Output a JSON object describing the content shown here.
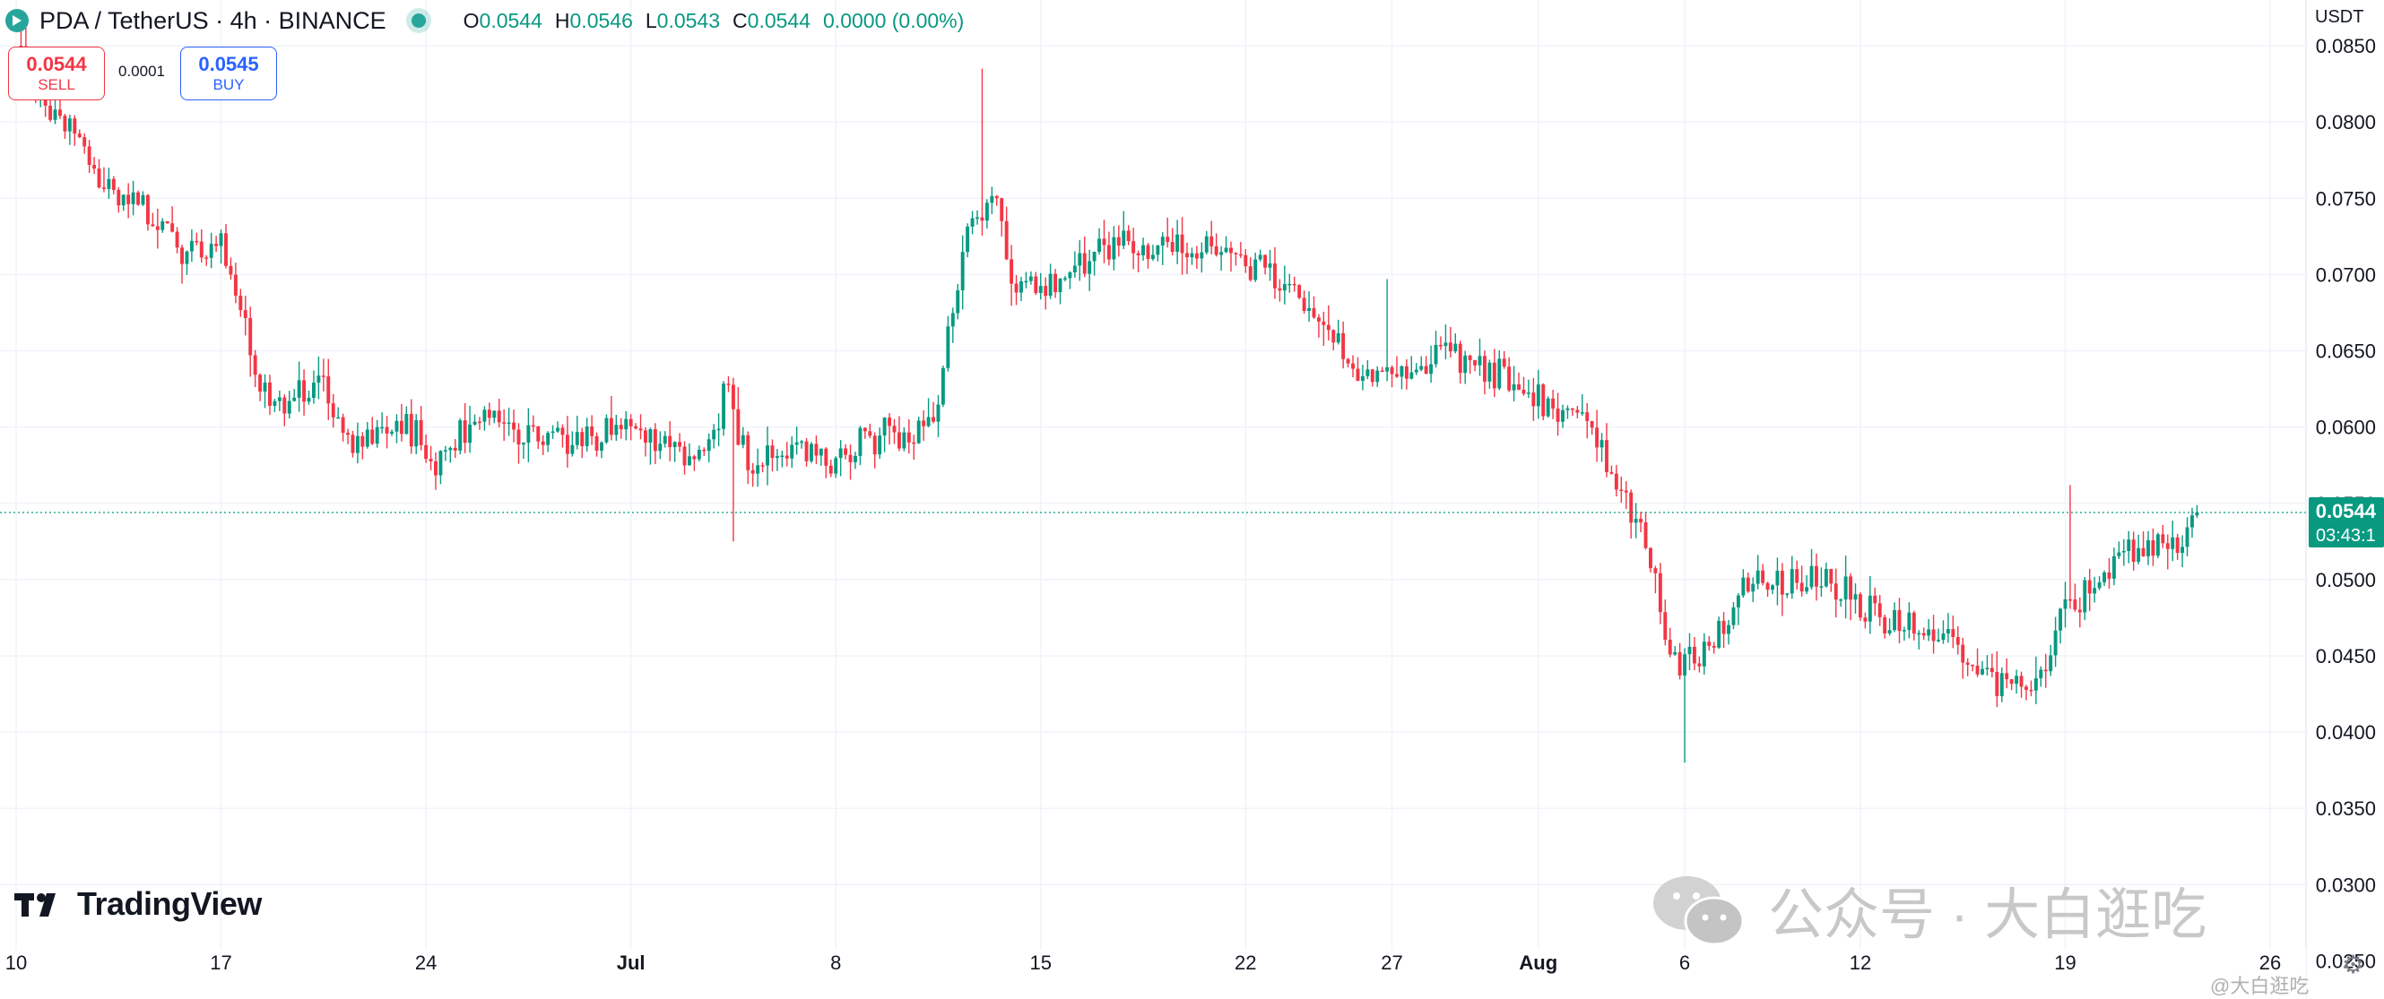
{
  "header": {
    "symbol": "PDA / TetherUS · 4h · BINANCE",
    "ohlc": [
      {
        "k": "O",
        "v": "0.0544"
      },
      {
        "k": "H",
        "v": "0.0546"
      },
      {
        "k": "L",
        "v": "0.0543"
      },
      {
        "k": "C",
        "v": "0.0544"
      },
      {
        "k": "",
        "v": "0.0000 (0.00%)"
      }
    ]
  },
  "trade": {
    "sell_price": "0.0544",
    "sell_label": "SELL",
    "spread": "0.0001",
    "buy_price": "0.0545",
    "buy_label": "BUY"
  },
  "axis": {
    "unit": "USDT"
  },
  "branding": {
    "logo_text": "TradingView"
  },
  "watermark": {
    "text": "公众号 · 大白逛吃",
    "corner": "@大白逛吃"
  },
  "colors": {
    "up": "#089981",
    "down": "#f23645",
    "last_price": "#089981",
    "grid": "#f0f3fa",
    "axis_text": "#131722"
  },
  "icons": {
    "settings": "gear-icon",
    "wechat": "wechat-icon"
  },
  "chart_data": {
    "type": "candlestick",
    "interval": "4h",
    "ylim": [
      0.0225,
      0.088
    ],
    "y_ticks": [
      "0.0850",
      "0.0800",
      "0.0750",
      "0.0700",
      "0.0650",
      "0.0600",
      "0.0550",
      "0.0500",
      "0.0450",
      "0.0400",
      "0.0350",
      "0.0300",
      "0.0250"
    ],
    "x_ticks": [
      {
        "label": "10",
        "day": 0
      },
      {
        "label": "17",
        "day": 7
      },
      {
        "label": "24",
        "day": 14
      },
      {
        "label": "Jul",
        "day": 21,
        "bold": true
      },
      {
        "label": "8",
        "day": 28
      },
      {
        "label": "15",
        "day": 35
      },
      {
        "label": "22",
        "day": 42
      },
      {
        "label": "27",
        "day": 47
      },
      {
        "label": "Aug",
        "day": 52,
        "bold": true
      },
      {
        "label": "6",
        "day": 57
      },
      {
        "label": "12",
        "day": 63
      },
      {
        "label": "19",
        "day": 70
      },
      {
        "label": "26",
        "day": 77
      }
    ],
    "last_price": "0.0544",
    "last_price_value": 0.0544,
    "countdown": "03:43:1",
    "close_path": [
      [
        0,
        0.085
      ],
      [
        1,
        0.081
      ],
      [
        1.8,
        0.08
      ],
      [
        2.5,
        0.077
      ],
      [
        3.5,
        0.075
      ],
      [
        4.5,
        0.074
      ],
      [
        5.5,
        0.072
      ],
      [
        6.3,
        0.0715
      ],
      [
        7,
        0.072
      ],
      [
        7.6,
        0.069
      ],
      [
        8.1,
        0.064
      ],
      [
        8.7,
        0.061
      ],
      [
        9.5,
        0.062
      ],
      [
        10.5,
        0.063
      ],
      [
        11.5,
        0.0585
      ],
      [
        12.5,
        0.0605
      ],
      [
        13.5,
        0.06
      ],
      [
        14.3,
        0.0575
      ],
      [
        15,
        0.059
      ],
      [
        16,
        0.061
      ],
      [
        17,
        0.06
      ],
      [
        18,
        0.0595
      ],
      [
        19,
        0.059
      ],
      [
        20,
        0.0595
      ],
      [
        21,
        0.06
      ],
      [
        22,
        0.059
      ],
      [
        23,
        0.058
      ],
      [
        23.8,
        0.059
      ],
      [
        24.3,
        0.063
      ],
      [
        25,
        0.057
      ],
      [
        25.7,
        0.0585
      ],
      [
        26.5,
        0.059
      ],
      [
        27.3,
        0.058
      ],
      [
        28,
        0.0575
      ],
      [
        29,
        0.059
      ],
      [
        30,
        0.0595
      ],
      [
        31,
        0.06
      ],
      [
        31.5,
        0.062
      ],
      [
        32,
        0.068
      ],
      [
        32.5,
        0.072
      ],
      [
        33.3,
        0.076
      ],
      [
        34,
        0.07
      ],
      [
        35,
        0.069
      ],
      [
        36,
        0.07
      ],
      [
        37,
        0.0715
      ],
      [
        38,
        0.072
      ],
      [
        39,
        0.0715
      ],
      [
        40,
        0.072
      ],
      [
        41,
        0.072
      ],
      [
        42,
        0.071
      ],
      [
        43,
        0.07
      ],
      [
        44,
        0.068
      ],
      [
        45,
        0.066
      ],
      [
        46,
        0.063
      ],
      [
        47,
        0.064
      ],
      [
        48,
        0.0645
      ],
      [
        49,
        0.065
      ],
      [
        50,
        0.064
      ],
      [
        51,
        0.063
      ],
      [
        52,
        0.062
      ],
      [
        53,
        0.061
      ],
      [
        54,
        0.059
      ],
      [
        55,
        0.055
      ],
      [
        55.8,
        0.052
      ],
      [
        56.5,
        0.045
      ],
      [
        57,
        0.044
      ],
      [
        57.5,
        0.045
      ],
      [
        58,
        0.046
      ],
      [
        58.5,
        0.047
      ],
      [
        59,
        0.05
      ],
      [
        60,
        0.05
      ],
      [
        61,
        0.0495
      ],
      [
        62,
        0.05
      ],
      [
        63,
        0.048
      ],
      [
        64,
        0.047
      ],
      [
        65,
        0.047
      ],
      [
        66,
        0.046
      ],
      [
        67,
        0.044
      ],
      [
        68,
        0.043
      ],
      [
        69,
        0.043
      ],
      [
        69.5,
        0.045
      ],
      [
        70,
        0.048
      ],
      [
        71,
        0.05
      ],
      [
        72,
        0.052
      ],
      [
        73,
        0.052
      ],
      [
        74,
        0.0525
      ],
      [
        74.6,
        0.0544
      ]
    ],
    "notable_wicks": [
      {
        "day": 33.0,
        "high": 0.0835
      },
      {
        "day": 57.0,
        "low": 0.038
      },
      {
        "day": 70.2,
        "high": 0.0562
      },
      {
        "day": 24.5,
        "low": 0.0525
      },
      {
        "day": 46.8,
        "high": 0.0697
      }
    ]
  }
}
